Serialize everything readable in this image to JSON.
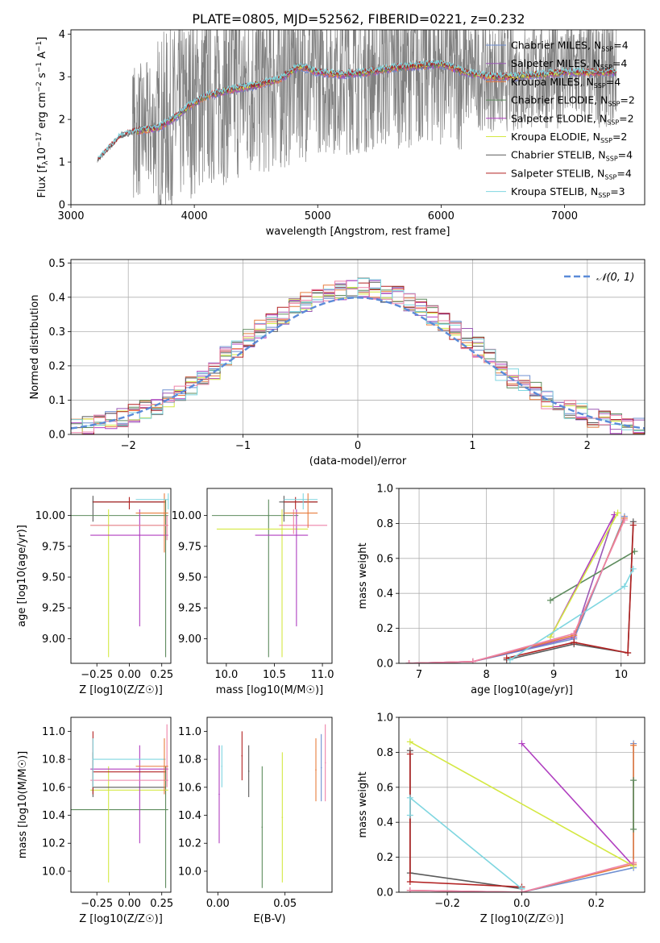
{
  "figure_title": "PLATE=0805, MJD=52562, FIBERID=0221, z=0.232",
  "colors": {
    "Chabrier MILES": "#6f8fd1",
    "Salpeter MILES": "#9b59b6",
    "Kroupa MILES": "#e87d3e",
    "Chabrier ELODIE": "#5e8c5e",
    "Salpeter ELODIE": "#b03fc0",
    "Kroupa ELODIE": "#d4e843",
    "Chabrier STELIB": "#5a5a5a",
    "Salpeter STELIB": "#b22222",
    "Kroupa STELIB": "#7fd6e0",
    "pink": "#ee82a8",
    "data": "#808080",
    "gauss": "#5b8bd8"
  },
  "chart_data": [
    {
      "id": "spectrum",
      "type": "line",
      "title": "PLATE=0805, MJD=52562, FIBERID=0221, z=0.232",
      "xlabel": "wavelength [Angstrom, rest frame]",
      "ylabel_parts": [
        "Flux [f",
        "λ",
        "10",
        "−17",
        " erg cm",
        "−2",
        " s",
        "−1",
        " A",
        "−1",
        "]"
      ],
      "xlim": [
        3000,
        7650
      ],
      "ylim": [
        0,
        4.1
      ],
      "xticks": [
        "3000",
        "4000",
        "5000",
        "6000",
        "7000"
      ],
      "yticks": [
        "0",
        "1",
        "2",
        "3",
        "4"
      ],
      "continuum": {
        "x": [
          3220,
          3400,
          3530,
          3700,
          3850,
          3950,
          4100,
          4300,
          4500,
          4700,
          4850,
          5000,
          5200,
          5400,
          5600,
          5800,
          6000,
          6200,
          6400,
          6600,
          6800,
          7000,
          7200,
          7400
        ],
        "y": [
          1.05,
          1.6,
          1.72,
          1.8,
          2.05,
          2.3,
          2.55,
          2.7,
          2.8,
          2.95,
          3.25,
          3.1,
          3.05,
          3.1,
          3.2,
          3.25,
          3.3,
          3.1,
          3.0,
          3.0,
          3.05,
          3.1,
          3.1,
          3.1
        ]
      },
      "legend": [
        {
          "name": "Chabrier MILES",
          "label": "Chabrier MILES, N",
          "sub": "SSP",
          "tail": "=4"
        },
        {
          "name": "Salpeter MILES",
          "label": "Salpeter MILES, N",
          "sub": "SSP",
          "tail": "=4"
        },
        {
          "name": "Kroupa MILES",
          "label": "Kroupa MILES, N",
          "sub": "SSP",
          "tail": "=4"
        },
        {
          "name": "Chabrier ELODIE",
          "label": "Chabrier ELODIE, N",
          "sub": "SSP",
          "tail": "=2"
        },
        {
          "name": "Salpeter ELODIE",
          "label": "Salpeter ELODIE, N",
          "sub": "SSP",
          "tail": "=2"
        },
        {
          "name": "Kroupa ELODIE",
          "label": "Kroupa ELODIE, N",
          "sub": "SSP",
          "tail": "=2"
        },
        {
          "name": "Chabrier STELIB",
          "label": "Chabrier STELIB, N",
          "sub": "SSP",
          "tail": "=4"
        },
        {
          "name": "Salpeter STELIB",
          "label": "Salpeter STELIB, N",
          "sub": "SSP",
          "tail": "=4"
        },
        {
          "name": "Kroupa STELIB",
          "label": "Kroupa STELIB, N",
          "sub": "SSP",
          "tail": "=3"
        }
      ]
    },
    {
      "id": "residuals",
      "type": "step",
      "xlabel": "(data-model)/error",
      "ylabel": "Normed distribution",
      "xlim": [
        -2.5,
        2.5
      ],
      "ylim": [
        0,
        0.51
      ],
      "xticks": [
        -2,
        -1,
        0,
        1,
        2
      ],
      "xticklabels": [
        "−2",
        "−1",
        "0",
        "1",
        "2"
      ],
      "yticks": [
        0.0,
        0.1,
        0.2,
        0.3,
        0.4,
        0.5
      ],
      "yticklabels": [
        "0.0",
        "0.1",
        "0.2",
        "0.3",
        "0.4",
        "0.5"
      ],
      "grid": true,
      "bin_width": 0.1,
      "gauss_label": "𝒩(0, 1)",
      "legend_position": "top-right"
    },
    {
      "id": "age_vs_Z",
      "type": "errorbar",
      "xlabel": "Z [log10(Z/Z☉)]",
      "ylabel": "age  [log10(age/yr)]",
      "xlim": [
        -0.45,
        0.32
      ],
      "ylim": [
        8.8,
        10.22
      ],
      "xticks": [
        -0.25,
        0.0,
        0.25
      ],
      "xticklabels": [
        "−0.25",
        "0.00",
        "0.25"
      ],
      "yticks": [
        9.0,
        9.25,
        9.5,
        9.75,
        10.0
      ],
      "yticklabels": [
        "9.00",
        "9.25",
        "9.50",
        "9.75",
        "10.00"
      ],
      "points": [
        {
          "s": "Chabrier STELIB",
          "x": -0.28,
          "xl": -0.28,
          "xh": 0.28,
          "y": 10.11,
          "yl": 9.95,
          "yh": 10.16
        },
        {
          "s": "Salpeter STELIB",
          "x": 0.0,
          "xl": -0.28,
          "xh": 0.28,
          "y": 10.11,
          "yl": 10.05,
          "yh": 10.15
        },
        {
          "s": "Chabrier ELODIE",
          "x": 0.28,
          "xl": -0.45,
          "xh": 0.3,
          "y": 10.0,
          "yl": 8.85,
          "yh": 10.13
        },
        {
          "s": "Kroupa ELODIE",
          "x": -0.16,
          "xl": -0.3,
          "xh": 0.3,
          "y": 9.92,
          "yl": 8.85,
          "yh": 10.05
        },
        {
          "s": "Salpeter ELODIE",
          "x": 0.08,
          "xl": -0.3,
          "xh": 0.3,
          "y": 9.84,
          "yl": 9.1,
          "yh": 10.05
        },
        {
          "s": "Kroupa MILES",
          "x": 0.27,
          "xl": 0.05,
          "xh": 0.3,
          "y": 10.02,
          "yl": 9.7,
          "yh": 10.18
        },
        {
          "s": "pink",
          "x": 0.29,
          "xl": -0.3,
          "xh": 0.3,
          "y": 9.92,
          "yl": 9.8,
          "yh": 10.0
        },
        {
          "s": "Kroupa STELIB",
          "x": 0.3,
          "xl": 0.05,
          "xh": 0.3,
          "y": 10.13,
          "yl": 10.05,
          "yh": 10.18
        }
      ]
    },
    {
      "id": "age_vs_mass",
      "type": "errorbar",
      "xlabel": "mass [log10(M/M☉)]",
      "ylabel": "",
      "xlim": [
        9.8,
        11.1
      ],
      "ylim": [
        8.8,
        10.22
      ],
      "xticks": [
        10.0,
        10.5,
        11.0
      ],
      "xticklabels": [
        "10.0",
        "10.5",
        "11.0"
      ],
      "yticks": [
        9.0,
        9.25,
        9.5,
        9.75,
        10.0
      ],
      "yticklabels": [
        "9.00",
        "9.25",
        "9.50",
        "9.75",
        "10.00"
      ],
      "points": [
        {
          "s": "Chabrier ELODIE",
          "x": 10.44,
          "xl": 9.85,
          "xh": 10.75,
          "y": 10.0,
          "yl": 8.85,
          "yh": 10.13
        },
        {
          "s": "Kroupa ELODIE",
          "x": 10.58,
          "xl": 9.9,
          "xh": 10.85,
          "y": 9.89,
          "yl": 8.85,
          "yh": 10.05
        },
        {
          "s": "Salpeter ELODIE",
          "x": 10.73,
          "xl": 10.3,
          "xh": 10.85,
          "y": 9.84,
          "yl": 9.1,
          "yh": 10.05
        },
        {
          "s": "Chabrier STELIB",
          "x": 10.6,
          "xl": 10.55,
          "xh": 10.95,
          "y": 10.11,
          "yl": 9.95,
          "yh": 10.16
        },
        {
          "s": "Salpeter STELIB",
          "x": 10.72,
          "xl": 10.6,
          "xh": 10.95,
          "y": 10.11,
          "yl": 10.05,
          "yh": 10.15
        },
        {
          "s": "pink",
          "x": 10.7,
          "xl": 10.55,
          "xh": 11.05,
          "y": 9.92,
          "yl": 9.85,
          "yh": 10.05
        },
        {
          "s": "Kroupa STELIB",
          "x": 10.8,
          "xl": 10.6,
          "xh": 10.95,
          "y": 10.13,
          "yl": 10.05,
          "yh": 10.18
        },
        {
          "s": "Kroupa MILES",
          "x": 10.85,
          "xl": 10.6,
          "xh": 10.95,
          "y": 10.02,
          "yl": 9.9,
          "yh": 10.18
        }
      ]
    },
    {
      "id": "weight_vs_age",
      "type": "line",
      "xlabel": "age  [log10(age/yr)]",
      "ylabel": "mass weight",
      "xlim": [
        6.7,
        10.35
      ],
      "ylim": [
        0,
        1.0
      ],
      "xticks": [
        7,
        8,
        9,
        10
      ],
      "xticklabels": [
        "7",
        "8",
        "9",
        "10"
      ],
      "yticks": [
        0.0,
        0.2,
        0.4,
        0.6,
        0.8,
        1.0
      ],
      "yticklabels": [
        "0.0",
        "0.2",
        "0.4",
        "0.6",
        "0.8",
        "1.0"
      ],
      "grid": true,
      "series": [
        {
          "s": "Chabrier MILES",
          "x": [
            6.85,
            7.8,
            9.3,
            10.05
          ],
          "y": [
            0.0,
            0.01,
            0.14,
            0.84
          ]
        },
        {
          "s": "Salpeter MILES",
          "x": [
            6.85,
            7.8,
            9.3,
            9.9
          ],
          "y": [
            0.0,
            0.01,
            0.15,
            0.85
          ]
        },
        {
          "s": "Kroupa MILES",
          "x": [
            6.85,
            7.8,
            9.3,
            10.05
          ],
          "y": [
            0.0,
            0.01,
            0.16,
            0.83
          ]
        },
        {
          "s": "Chabrier ELODIE",
          "x": [
            8.95,
            10.2
          ],
          "y": [
            0.36,
            0.64
          ]
        },
        {
          "s": "Salpeter ELODIE",
          "x": [
            8.95,
            9.9
          ],
          "y": [
            0.15,
            0.85
          ]
        },
        {
          "s": "Kroupa ELODIE",
          "x": [
            8.95,
            9.95
          ],
          "y": [
            0.15,
            0.86
          ]
        },
        {
          "s": "Chabrier STELIB",
          "x": [
            8.3,
            9.3,
            10.1,
            10.18
          ],
          "y": [
            0.02,
            0.11,
            0.06,
            0.81
          ]
        },
        {
          "s": "Salpeter STELIB",
          "x": [
            8.3,
            9.3,
            10.1,
            10.18
          ],
          "y": [
            0.03,
            0.12,
            0.06,
            0.79
          ]
        },
        {
          "s": "Kroupa STELIB",
          "x": [
            8.35,
            10.05,
            10.18
          ],
          "y": [
            0.02,
            0.44,
            0.54
          ]
        },
        {
          "s": "pink",
          "x": [
            6.85,
            7.8,
            9.3,
            10.05
          ],
          "y": [
            0.0,
            0.01,
            0.17,
            0.82
          ]
        }
      ]
    },
    {
      "id": "mass_vs_Z",
      "type": "errorbar",
      "xlabel": "Z [log10(Z/Z☉)]",
      "ylabel": "mass [log10(M/M☉)]",
      "xlim": [
        -0.45,
        0.32
      ],
      "ylim": [
        9.85,
        11.1
      ],
      "xticks": [
        -0.25,
        0.0,
        0.25
      ],
      "xticklabels": [
        "−0.25",
        "0.00",
        "0.25"
      ],
      "yticks": [
        10.0,
        10.2,
        10.4,
        10.6,
        10.8,
        11.0
      ],
      "yticklabels": [
        "10.0",
        "10.2",
        "10.4",
        "10.6",
        "10.8",
        "11.0"
      ],
      "points": [
        {
          "s": "Chabrier ELODIE",
          "x": 0.28,
          "xl": -0.45,
          "xh": 0.3,
          "y": 10.44,
          "yl": 9.88,
          "yh": 10.75
        },
        {
          "s": "Kroupa ELODIE",
          "x": -0.16,
          "xl": -0.3,
          "xh": 0.3,
          "y": 10.58,
          "yl": 9.92,
          "yh": 10.75
        },
        {
          "s": "Salpeter ELODIE",
          "x": 0.08,
          "xl": -0.3,
          "xh": 0.3,
          "y": 10.73,
          "yl": 10.2,
          "yh": 10.9
        },
        {
          "s": "Chabrier STELIB",
          "x": -0.28,
          "xl": -0.28,
          "xh": 0.28,
          "y": 10.6,
          "yl": 10.53,
          "yh": 10.85
        },
        {
          "s": "Salpeter STELIB",
          "x": -0.28,
          "xl": -0.28,
          "xh": 0.28,
          "y": 10.71,
          "yl": 10.55,
          "yh": 11.0
        },
        {
          "s": "pink",
          "x": 0.29,
          "xl": -0.3,
          "xh": 0.3,
          "y": 10.65,
          "yl": 10.6,
          "yh": 11.05
        },
        {
          "s": "Kroupa STELIB",
          "x": -0.28,
          "xl": -0.28,
          "xh": 0.28,
          "y": 10.8,
          "yl": 10.6,
          "yh": 10.95
        },
        {
          "s": "Kroupa MILES",
          "x": 0.27,
          "xl": 0.05,
          "xh": 0.3,
          "y": 10.75,
          "yl": 10.55,
          "yh": 10.95
        }
      ]
    },
    {
      "id": "mass_vs_EBV",
      "type": "errorbar",
      "xlabel": "E(B-V)",
      "ylabel": "",
      "xlim": [
        -0.008,
        0.085
      ],
      "ylim": [
        9.85,
        11.1
      ],
      "xticks": [
        0.0,
        0.05
      ],
      "xticklabels": [
        "0.00",
        "0.05"
      ],
      "yticks": [
        10.0,
        10.2,
        10.4,
        10.6,
        10.8,
        11.0
      ],
      "yticklabels": [
        "10.0",
        "10.2",
        "10.4",
        "10.6",
        "10.8",
        "11.0"
      ],
      "points": [
        {
          "s": "Salpeter ELODIE",
          "x": 0.001,
          "yl": 10.2,
          "yh": 10.9
        },
        {
          "s": "Kroupa STELIB",
          "x": 0.003,
          "yl": 10.6,
          "yh": 10.9
        },
        {
          "s": "Salpeter STELIB",
          "x": 0.018,
          "yl": 10.65,
          "yh": 11.0
        },
        {
          "s": "Chabrier STELIB",
          "x": 0.023,
          "yl": 10.53,
          "yh": 10.9
        },
        {
          "s": "Chabrier ELODIE",
          "x": 0.033,
          "yl": 9.88,
          "yh": 10.75
        },
        {
          "s": "Kroupa ELODIE",
          "x": 0.048,
          "yl": 9.92,
          "yh": 10.85
        },
        {
          "s": "Kroupa MILES",
          "x": 0.073,
          "yl": 10.5,
          "yh": 10.95
        },
        {
          "s": "Chabrier MILES",
          "x": 0.077,
          "yl": 10.5,
          "yh": 10.98
        },
        {
          "s": "pink",
          "x": 0.08,
          "yl": 10.5,
          "yh": 11.05
        }
      ]
    },
    {
      "id": "weight_vs_Z",
      "type": "line",
      "xlabel": "Z [log10(Z/Z☉)]",
      "ylabel": "mass weight",
      "xlim": [
        -0.33,
        0.33
      ],
      "ylim": [
        0,
        1.0
      ],
      "xticks": [
        -0.2,
        0.0,
        0.2
      ],
      "xticklabels": [
        "−0.2",
        "0.0",
        "0.2"
      ],
      "yticks": [
        0.0,
        0.2,
        0.4,
        0.6,
        0.8,
        1.0
      ],
      "yticklabels": [
        "0.0",
        "0.2",
        "0.4",
        "0.6",
        "0.8",
        "1.0"
      ],
      "grid": true,
      "series": [
        {
          "s": "Chabrier MILES",
          "x": [
            -0.3,
            0.0,
            0.3,
            0.3
          ],
          "y": [
            0.01,
            0.0,
            0.14,
            0.85
          ]
        },
        {
          "s": "Kroupa MILES",
          "x": [
            -0.3,
            0.0,
            0.3,
            0.3
          ],
          "y": [
            0.01,
            0.0,
            0.16,
            0.84
          ]
        },
        {
          "s": "Salpeter ELODIE",
          "x": [
            0.0,
            0.3
          ],
          "y": [
            0.85,
            0.15
          ]
        },
        {
          "s": "Kroupa ELODIE",
          "x": [
            -0.3,
            0.3
          ],
          "y": [
            0.86,
            0.15
          ]
        },
        {
          "s": "Chabrier ELODIE",
          "x": [
            0.3,
            0.3
          ],
          "y": [
            0.36,
            0.64
          ]
        },
        {
          "s": "Chabrier STELIB",
          "x": [
            -0.3,
            -0.3,
            0.0
          ],
          "y": [
            0.81,
            0.11,
            0.02
          ]
        },
        {
          "s": "Salpeter STELIB",
          "x": [
            -0.3,
            -0.3,
            0.0
          ],
          "y": [
            0.79,
            0.06,
            0.03
          ]
        },
        {
          "s": "Kroupa STELIB",
          "x": [
            -0.3,
            -0.3,
            0.0
          ],
          "y": [
            0.44,
            0.54,
            0.02
          ]
        },
        {
          "s": "pink",
          "x": [
            -0.3,
            0.0,
            0.3
          ],
          "y": [
            0.01,
            0.0,
            0.17
          ]
        }
      ]
    }
  ]
}
